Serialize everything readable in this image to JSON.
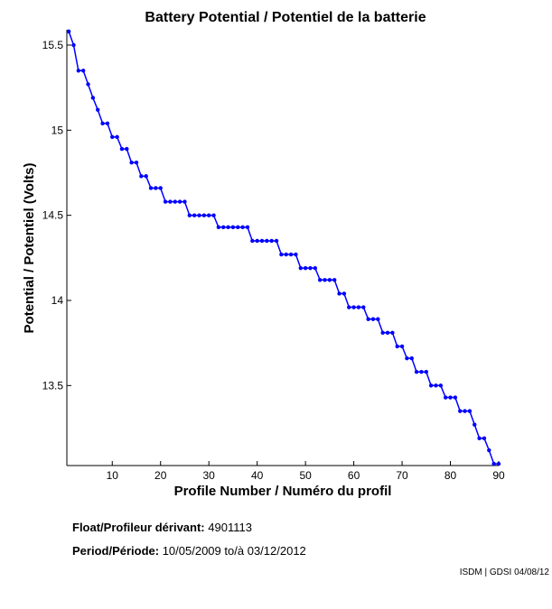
{
  "chart_data": {
    "type": "line",
    "title": "Battery Potential / Potentiel de la batterie",
    "xlabel": "Profile Number / Numéro du profil",
    "ylabel": "Potential / Potentiel (Volts)",
    "xlim": [
      0.6,
      90
    ],
    "ylim": [
      13.03,
      15.59
    ],
    "xticks": [
      10,
      20,
      30,
      40,
      50,
      60,
      70,
      80,
      90
    ],
    "yticks": [
      13.5,
      14,
      14.5,
      15,
      15.5
    ],
    "ytick_labels": [
      "13.5",
      "14",
      "14.5",
      "15",
      "15.5"
    ],
    "grid": false,
    "line_color": "#0000ff",
    "marker": "dot",
    "x": [
      1,
      2,
      3,
      4,
      5,
      6,
      7,
      8,
      9,
      10,
      11,
      12,
      13,
      14,
      15,
      16,
      17,
      18,
      19,
      20,
      21,
      22,
      23,
      24,
      25,
      26,
      27,
      28,
      29,
      30,
      31,
      32,
      33,
      34,
      35,
      36,
      37,
      38,
      39,
      40,
      41,
      42,
      43,
      44,
      45,
      46,
      47,
      48,
      49,
      50,
      51,
      52,
      53,
      54,
      55,
      56,
      57,
      58,
      59,
      60,
      61,
      62,
      63,
      64,
      65,
      66,
      67,
      68,
      69,
      70,
      71,
      72,
      73,
      74,
      75,
      76,
      77,
      78,
      79,
      80,
      81,
      82,
      83,
      84,
      85,
      86,
      87,
      88,
      89,
      90
    ],
    "y": [
      15.58,
      15.5,
      15.35,
      15.35,
      15.27,
      15.19,
      15.12,
      15.04,
      15.04,
      14.96,
      14.96,
      14.89,
      14.89,
      14.81,
      14.81,
      14.73,
      14.73,
      14.66,
      14.66,
      14.66,
      14.58,
      14.58,
      14.58,
      14.58,
      14.58,
      14.5,
      14.5,
      14.5,
      14.5,
      14.5,
      14.5,
      14.43,
      14.43,
      14.43,
      14.43,
      14.43,
      14.43,
      14.43,
      14.35,
      14.35,
      14.35,
      14.35,
      14.35,
      14.35,
      14.27,
      14.27,
      14.27,
      14.27,
      14.19,
      14.19,
      14.19,
      14.19,
      14.12,
      14.12,
      14.12,
      14.12,
      14.04,
      14.04,
      13.96,
      13.96,
      13.96,
      13.96,
      13.89,
      13.89,
      13.89,
      13.81,
      13.81,
      13.81,
      13.73,
      13.73,
      13.66,
      13.66,
      13.58,
      13.58,
      13.58,
      13.5,
      13.5,
      13.5,
      13.43,
      13.43,
      13.43,
      13.35,
      13.35,
      13.35,
      13.27,
      13.19,
      13.19,
      13.12,
      13.04,
      13.04
    ]
  },
  "info": {
    "float_label": "Float/Profileur dérivant:",
    "float_value": "4901113",
    "period_label": "Period/Période:",
    "period_start": "10/05/2009",
    "period_sep": "to/à",
    "period_end": "03/12/2012"
  },
  "credit": "ISDM | GDSI 04/08/12"
}
